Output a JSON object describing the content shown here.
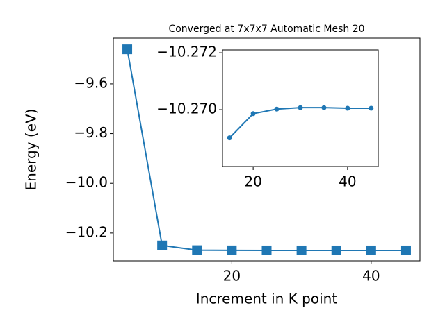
{
  "chart_data": [
    {
      "type": "line",
      "title": "Converged at 7x7x7 Automatic Mesh 20",
      "x_label": "Increment in K point",
      "y_label": "Energy (eV)",
      "x": [
        5,
        10,
        15,
        20,
        25,
        30,
        35,
        40,
        45
      ],
      "series": [
        {
          "color": "#1f77b4",
          "marker": "square",
          "values": [
            -9.461,
            -10.25,
            -10.26901,
            -10.26986,
            -10.27002,
            -10.27007,
            -10.27007,
            -10.27005,
            -10.27005
          ]
        }
      ],
      "xlim": [
        3,
        47
      ],
      "xticks": [
        20,
        40
      ],
      "ylim": [
        -10.312,
        -9.416
      ],
      "yticks": [
        {
          "value": -9.6,
          "label": "−9.6"
        },
        {
          "value": -9.8,
          "label": "−9.8"
        },
        {
          "value": -10.0,
          "label": "−10.0"
        },
        {
          "value": -10.2,
          "label": "−10.2"
        }
      ]
    },
    {
      "type": "line",
      "x": [
        15,
        20,
        25,
        30,
        35,
        40,
        45
      ],
      "series": [
        {
          "color": "#1f77b4",
          "marker": "circle",
          "values": [
            -10.26901,
            -10.26986,
            -10.27002,
            -10.27007,
            -10.27007,
            -10.27005,
            -10.27005
          ]
        }
      ],
      "xlim": [
        13.5,
        46.5
      ],
      "xticks": [
        20,
        40
      ],
      "ylim": [
        -10.268,
        -10.2721
      ],
      "yticks": [
        {
          "value": -10.272,
          "label": "−10.272"
        },
        {
          "value": -10.27,
          "label": "−10.270"
        }
      ]
    }
  ]
}
